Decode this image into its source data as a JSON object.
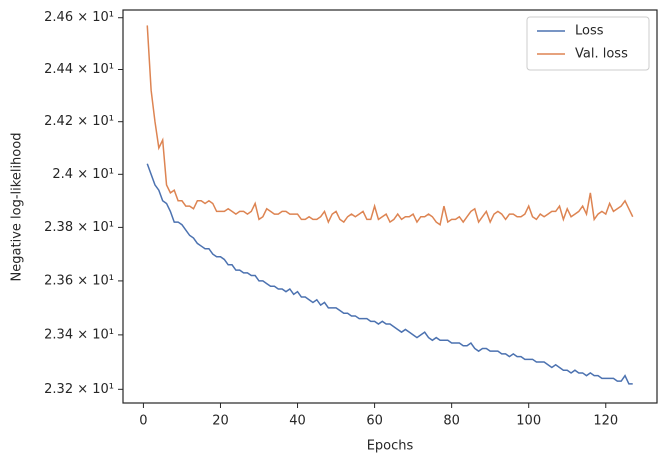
{
  "chart_data": {
    "type": "line",
    "xlabel": "Epochs",
    "ylabel": "Negative log-likelihood",
    "x": [
      1,
      2,
      3,
      4,
      5,
      6,
      7,
      8,
      9,
      10,
      11,
      12,
      13,
      14,
      15,
      16,
      17,
      18,
      19,
      20,
      21,
      22,
      23,
      24,
      25,
      26,
      27,
      28,
      29,
      30,
      31,
      32,
      33,
      34,
      35,
      36,
      37,
      38,
      39,
      40,
      41,
      42,
      43,
      44,
      45,
      46,
      47,
      48,
      49,
      50,
      51,
      52,
      53,
      54,
      55,
      56,
      57,
      58,
      59,
      60,
      61,
      62,
      63,
      64,
      65,
      66,
      67,
      68,
      69,
      70,
      71,
      72,
      73,
      74,
      75,
      76,
      77,
      78,
      79,
      80,
      81,
      82,
      83,
      84,
      85,
      86,
      87,
      88,
      89,
      90,
      91,
      92,
      93,
      94,
      95,
      96,
      97,
      98,
      99,
      100,
      101,
      102,
      103,
      104,
      105,
      106,
      107,
      108,
      109,
      110,
      111,
      112,
      113,
      114,
      115,
      116,
      117,
      118,
      119,
      120,
      121,
      122,
      123,
      124,
      125,
      126,
      127
    ],
    "series": [
      {
        "name": "Loss",
        "color": "#4c72b0",
        "values": [
          24.04,
          24.0,
          23.96,
          23.94,
          23.9,
          23.89,
          23.86,
          23.82,
          23.82,
          23.81,
          23.79,
          23.77,
          23.76,
          23.74,
          23.73,
          23.72,
          23.72,
          23.7,
          23.69,
          23.69,
          23.68,
          23.66,
          23.66,
          23.64,
          23.64,
          23.63,
          23.63,
          23.62,
          23.62,
          23.6,
          23.6,
          23.59,
          23.58,
          23.58,
          23.57,
          23.57,
          23.56,
          23.57,
          23.55,
          23.56,
          23.54,
          23.54,
          23.53,
          23.52,
          23.53,
          23.51,
          23.52,
          23.5,
          23.5,
          23.5,
          23.49,
          23.48,
          23.48,
          23.47,
          23.47,
          23.46,
          23.46,
          23.46,
          23.45,
          23.45,
          23.44,
          23.45,
          23.44,
          23.44,
          23.43,
          23.42,
          23.41,
          23.42,
          23.41,
          23.4,
          23.39,
          23.4,
          23.41,
          23.39,
          23.38,
          23.39,
          23.38,
          23.38,
          23.38,
          23.37,
          23.37,
          23.37,
          23.36,
          23.36,
          23.37,
          23.35,
          23.34,
          23.35,
          23.35,
          23.34,
          23.34,
          23.34,
          23.33,
          23.33,
          23.32,
          23.33,
          23.32,
          23.32,
          23.31,
          23.31,
          23.31,
          23.3,
          23.3,
          23.3,
          23.29,
          23.28,
          23.29,
          23.28,
          23.27,
          23.27,
          23.26,
          23.27,
          23.26,
          23.26,
          23.25,
          23.26,
          23.25,
          23.25,
          23.24,
          23.24,
          23.24,
          23.24,
          23.23,
          23.23,
          23.25,
          23.22,
          23.22
        ]
      },
      {
        "name": "Val. loss",
        "color": "#dd8452",
        "values": [
          24.57,
          24.32,
          24.2,
          24.1,
          24.13,
          23.96,
          23.93,
          23.94,
          23.9,
          23.9,
          23.88,
          23.88,
          23.87,
          23.9,
          23.9,
          23.89,
          23.9,
          23.89,
          23.86,
          23.86,
          23.86,
          23.87,
          23.86,
          23.85,
          23.86,
          23.86,
          23.85,
          23.86,
          23.89,
          23.83,
          23.84,
          23.87,
          23.86,
          23.85,
          23.85,
          23.86,
          23.86,
          23.85,
          23.85,
          23.85,
          23.83,
          23.83,
          23.84,
          23.83,
          23.83,
          23.84,
          23.86,
          23.82,
          23.85,
          23.86,
          23.83,
          23.82,
          23.84,
          23.85,
          23.84,
          23.85,
          23.86,
          23.83,
          23.83,
          23.88,
          23.83,
          23.84,
          23.85,
          23.82,
          23.83,
          23.85,
          23.83,
          23.84,
          23.84,
          23.85,
          23.82,
          23.84,
          23.84,
          23.85,
          23.84,
          23.82,
          23.81,
          23.88,
          23.82,
          23.83,
          23.83,
          23.84,
          23.82,
          23.84,
          23.86,
          23.87,
          23.82,
          23.84,
          23.86,
          23.82,
          23.85,
          23.86,
          23.85,
          23.83,
          23.85,
          23.85,
          23.84,
          23.84,
          23.85,
          23.88,
          23.84,
          23.83,
          23.85,
          23.84,
          23.85,
          23.86,
          23.86,
          23.88,
          23.83,
          23.87,
          23.84,
          23.85,
          23.86,
          23.88,
          23.85,
          23.93,
          23.83,
          23.85,
          23.86,
          23.85,
          23.89,
          23.86,
          23.87,
          23.88,
          23.9,
          23.87,
          23.84
        ]
      }
    ],
    "xlim": [
      -5.3,
      133.3
    ],
    "xticks": [
      0,
      20,
      40,
      60,
      80,
      100,
      120
    ],
    "ylim": [
      23.15,
      24.63
    ],
    "yscale": "log",
    "yticks": [
      {
        "value": 23.2,
        "label": "2.32 × 10¹"
      },
      {
        "value": 23.4,
        "label": "2.34 × 10¹"
      },
      {
        "value": 23.6,
        "label": "2.36 × 10¹"
      },
      {
        "value": 23.8,
        "label": "2.38 × 10¹"
      },
      {
        "value": 24.0,
        "label": "2.4 × 10¹"
      },
      {
        "value": 24.2,
        "label": "2.42 × 10¹"
      },
      {
        "value": 24.4,
        "label": "2.44 × 10¹"
      },
      {
        "value": 24.6,
        "label": "2.46 × 10¹"
      }
    ],
    "legend": "upper right",
    "grid": false
  }
}
